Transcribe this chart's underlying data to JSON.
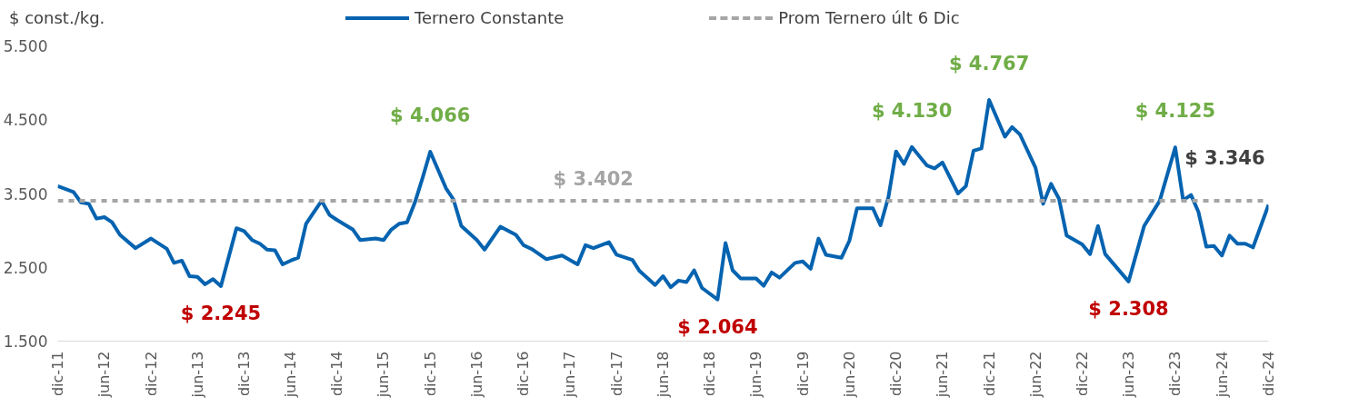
{
  "chart_data": {
    "type": "line",
    "ylabel": "$ const./kg.",
    "xlim": [
      "2011-12",
      "2024-12"
    ],
    "xticks": [
      {
        "value": "2011-12",
        "label": "dic-11"
      },
      {
        "value": "2012-06",
        "label": "jun-12"
      },
      {
        "value": "2012-12",
        "label": "dic-12"
      },
      {
        "value": "2013-06",
        "label": "jun-13"
      },
      {
        "value": "2013-12",
        "label": "dic-13"
      },
      {
        "value": "2014-06",
        "label": "jun-14"
      },
      {
        "value": "2014-12",
        "label": "dic-14"
      },
      {
        "value": "2015-06",
        "label": "jun-15"
      },
      {
        "value": "2015-12",
        "label": "dic-15"
      },
      {
        "value": "2016-06",
        "label": "jun-16"
      },
      {
        "value": "2016-12",
        "label": "dic-16"
      },
      {
        "value": "2017-06",
        "label": "jun-17"
      },
      {
        "value": "2017-12",
        "label": "dic-17"
      },
      {
        "value": "2018-06",
        "label": "jun-18"
      },
      {
        "value": "2018-12",
        "label": "dic-18"
      },
      {
        "value": "2019-06",
        "label": "jun-19"
      },
      {
        "value": "2019-12",
        "label": "dic-19"
      },
      {
        "value": "2020-06",
        "label": "jun-20"
      },
      {
        "value": "2020-12",
        "label": "dic-20"
      },
      {
        "value": "2021-06",
        "label": "jun-21"
      },
      {
        "value": "2021-12",
        "label": "dic-21"
      },
      {
        "value": "2022-06",
        "label": "jun-22"
      },
      {
        "value": "2022-12",
        "label": "dic-22"
      },
      {
        "value": "2023-06",
        "label": "jun-23"
      },
      {
        "value": "2023-12",
        "label": "dic-23"
      },
      {
        "value": "2024-06",
        "label": "jun-24"
      },
      {
        "value": "2024-12",
        "label": "dic-24"
      }
    ],
    "ylim": [
      1500,
      5500
    ],
    "yticks": [
      {
        "value": 1500,
        "label": "1.500"
      },
      {
        "value": 2500,
        "label": "2.500"
      },
      {
        "value": 3500,
        "label": "3.500"
      },
      {
        "value": 4500,
        "label": "4.500"
      },
      {
        "value": 5500,
        "label": "5.500"
      }
    ],
    "grid": false,
    "legend": "top",
    "marker": "none",
    "series": [
      {
        "name": "Ternero Constante",
        "color": "#0563b0",
        "line_style": "solid",
        "x": [
          "2011-12",
          "2012-02",
          "2012-03",
          "2012-04",
          "2012-05",
          "2012-06",
          "2012-07",
          "2012-08",
          "2012-10",
          "2012-12",
          "2013-02",
          "2013-03",
          "2013-04",
          "2013-05",
          "2013-06",
          "2013-07",
          "2013-08",
          "2013-09",
          "2013-11",
          "2013-12",
          "2014-01",
          "2014-02",
          "2014-03",
          "2014-04",
          "2014-05",
          "2014-06",
          "2014-07",
          "2014-08",
          "2014-09",
          "2014-10",
          "2014-11",
          "2014-12",
          "2015-02",
          "2015-03",
          "2015-05",
          "2015-06",
          "2015-07",
          "2015-08",
          "2015-09",
          "2015-10",
          "2015-11",
          "2015-12",
          "2016-02",
          "2016-03",
          "2016-04",
          "2016-06",
          "2016-07",
          "2016-09",
          "2016-11",
          "2016-12",
          "2017-01",
          "2017-03",
          "2017-05",
          "2017-07",
          "2017-08",
          "2017-09",
          "2017-11",
          "2017-12",
          "2018-02",
          "2018-03",
          "2018-05",
          "2018-06",
          "2018-07",
          "2018-08",
          "2018-09",
          "2018-10",
          "2018-11",
          "2019-01",
          "2019-02",
          "2019-03",
          "2019-04",
          "2019-06",
          "2019-07",
          "2019-08",
          "2019-09",
          "2019-11",
          "2019-12",
          "2020-01",
          "2020-02",
          "2020-03",
          "2020-05",
          "2020-06",
          "2020-07",
          "2020-09",
          "2020-10",
          "2020-11",
          "2020-12",
          "2021-01",
          "2021-02",
          "2021-04",
          "2021-05",
          "2021-06",
          "2021-08",
          "2021-09",
          "2021-10",
          "2021-11",
          "2021-12",
          "2022-02",
          "2022-03",
          "2022-04",
          "2022-06",
          "2022-07",
          "2022-08",
          "2022-09",
          "2022-10",
          "2022-12",
          "2023-01",
          "2023-02",
          "2023-03",
          "2023-06",
          "2023-08",
          "2023-10",
          "2023-12",
          "2024-01",
          "2024-02",
          "2024-03",
          "2024-04",
          "2024-05",
          "2024-06",
          "2024-07",
          "2024-08",
          "2024-09",
          "2024-10",
          "2024-12"
        ],
        "values": [
          3600,
          3520,
          3380,
          3360,
          3160,
          3180,
          3110,
          2940,
          2760,
          2890,
          2750,
          2560,
          2590,
          2380,
          2370,
          2270,
          2340,
          2245,
          3030,
          2990,
          2870,
          2820,
          2740,
          2730,
          2540,
          2590,
          2630,
          3090,
          3250,
          3400,
          3210,
          3140,
          3010,
          2870,
          2890,
          2870,
          3010,
          3090,
          3110,
          3370,
          3710,
          4066,
          3570,
          3420,
          3060,
          2870,
          2740,
          3050,
          2940,
          2800,
          2750,
          2610,
          2660,
          2540,
          2800,
          2760,
          2840,
          2670,
          2600,
          2450,
          2260,
          2380,
          2230,
          2320,
          2300,
          2460,
          2220,
          2064,
          2830,
          2460,
          2350,
          2350,
          2250,
          2430,
          2360,
          2560,
          2580,
          2480,
          2890,
          2670,
          2630,
          2860,
          3300,
          3300,
          3070,
          3450,
          4070,
          3900,
          4130,
          3880,
          3840,
          3920,
          3500,
          3600,
          4080,
          4110,
          4767,
          4270,
          4400,
          4300,
          3850,
          3360,
          3630,
          3430,
          2930,
          2810,
          2680,
          3060,
          2680,
          2308,
          3060,
          3400,
          4125,
          3410,
          3480,
          3250,
          2780,
          2790,
          2660,
          2930,
          2820,
          2820,
          2770,
          3346
        ]
      },
      {
        "name": "Prom Ternero últ 6 Dic",
        "color": "#a5a5a5",
        "line_style": "dashed",
        "x": [
          "2011-12",
          "2024-12"
        ],
        "values": [
          3402,
          3402
        ]
      }
    ],
    "annotations": [
      {
        "text": "$ 2.245",
        "x": "2013-09",
        "y": 2245
      },
      {
        "text": "$ 4.066",
        "x": "2015-12",
        "y": 4066
      },
      {
        "text": "$ 3.402",
        "x": "2017-09",
        "y": 3402
      },
      {
        "text": "$ 2.064",
        "x": "2019-01",
        "y": 2064
      },
      {
        "text": "$ 4.130",
        "x": "2021-02",
        "y": 4130
      },
      {
        "text": "$ 4.767",
        "x": "2021-12",
        "y": 4767
      },
      {
        "text": "$ 2.308",
        "x": "2023-06",
        "y": 2308
      },
      {
        "text": "$ 4.125",
        "x": "2023-12",
        "y": 4125
      },
      {
        "text": "$ 3.346",
        "x": "2024-12",
        "y": 3346
      }
    ]
  }
}
